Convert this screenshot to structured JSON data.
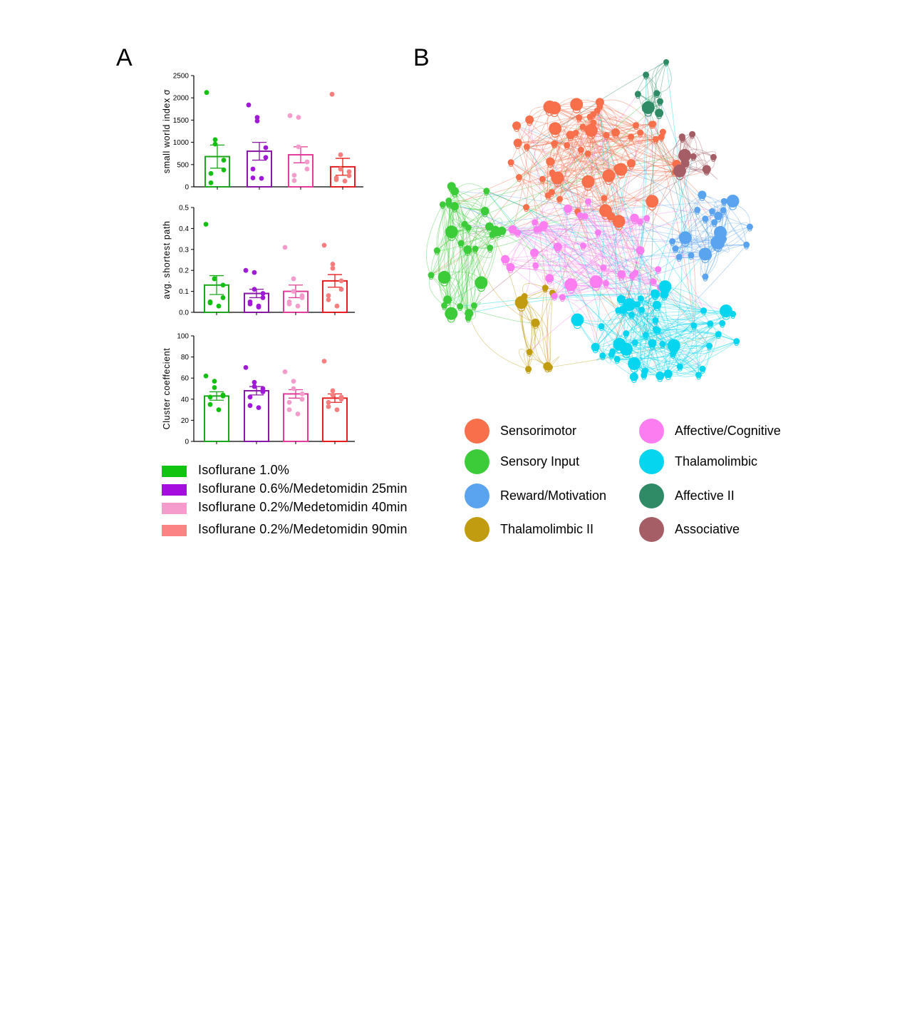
{
  "panels": {
    "a": "A",
    "b": "B"
  },
  "groups": [
    {
      "name": "Isoflurane  1.0%",
      "color": "#1aa71a",
      "dot": "#11c011",
      "swatch": "#12c412"
    },
    {
      "name": "Isoflurane  0.6%/Medetomidin  25min",
      "color": "#8a16a8",
      "dot": "#a019d6",
      "swatch": "#a60ee0"
    },
    {
      "name": "Isoflurane  0.2%/Medetomidin  40min",
      "color": "#e23b9a",
      "dot": "#f49ccc",
      "swatch": "#f59ccc"
    },
    {
      "name": "Isoflurane  0.2%/Medetomidin  90min",
      "color": "#e81e1e",
      "dot": "#f77e7e",
      "swatch": "#fb8383"
    }
  ],
  "chart_data": [
    {
      "type": "bar",
      "ylabel": "small world index σ",
      "ylim": [
        0,
        2500
      ],
      "yticks": [
        0,
        500,
        1000,
        1500,
        2000,
        2500
      ],
      "categories": [
        "Isoflurane  1.0%",
        "Isoflurane  0.6%/Medetomidin  25min",
        "Isoflurane  0.2%/Medetomidin  40min",
        "Isoflurane  0.2%/Medetomidin  90min"
      ],
      "values": [
        680,
        800,
        720,
        450
      ],
      "sem": [
        260,
        200,
        180,
        190
      ],
      "points": [
        [
          2120,
          1060,
          960,
          600,
          380,
          300,
          90
        ],
        [
          1840,
          1560,
          1480,
          880,
          660,
          400,
          200,
          190
        ],
        [
          1600,
          1560,
          900,
          560,
          400,
          260,
          140
        ],
        [
          2080,
          720,
          400,
          340,
          250,
          200,
          160,
          130
        ]
      ]
    },
    {
      "type": "bar",
      "ylabel": "avg. shortest path",
      "ylim": [
        0,
        0.5
      ],
      "yticks": [
        0.0,
        0.1,
        0.2,
        0.3,
        0.4,
        0.5
      ],
      "categories": [
        "Isoflurane  1.0%",
        "Isoflurane  0.6%/Medetomidin  25min",
        "Isoflurane  0.2%/Medetomidin  40min",
        "Isoflurane  0.2%/Medetomidin  90min"
      ],
      "values": [
        0.13,
        0.09,
        0.1,
        0.15
      ],
      "sem": [
        0.045,
        0.02,
        0.03,
        0.03
      ],
      "points": [
        [
          0.42,
          0.16,
          0.16,
          0.13,
          0.07,
          0.05,
          0.045,
          0.03
        ],
        [
          0.2,
          0.19,
          0.11,
          0.09,
          0.07,
          0.05,
          0.04,
          0.03,
          0.025
        ],
        [
          0.31,
          0.16,
          0.1,
          0.08,
          0.07,
          0.05,
          0.04,
          0.03
        ],
        [
          0.32,
          0.23,
          0.21,
          0.15,
          0.11,
          0.08,
          0.06,
          0.03
        ]
      ]
    },
    {
      "type": "bar",
      "ylabel": "Cluster coeffecient",
      "ylim": [
        0,
        100
      ],
      "yticks": [
        0,
        20,
        40,
        60,
        80,
        100
      ],
      "categories": [
        "Isoflurane  1.0%",
        "Isoflurane  0.6%/Medetomidin  25min",
        "Isoflurane  0.2%/Medetomidin  40min",
        "Isoflurane  0.2%/Medetomidin  90min"
      ],
      "values": [
        43,
        48,
        45,
        41
      ],
      "sem": [
        4,
        4,
        4,
        4
      ],
      "points": [
        [
          62,
          57,
          51,
          44,
          43,
          42,
          35,
          30
        ],
        [
          70,
          56,
          52,
          50,
          47,
          42,
          34,
          32
        ],
        [
          66,
          57,
          50,
          45,
          40,
          37,
          30,
          26
        ],
        [
          76,
          48,
          44,
          42,
          40,
          37,
          33,
          30
        ]
      ]
    },
    {
      "type": "network",
      "modules": [
        {
          "name": "Sensorimotor",
          "color": "#f86f4b"
        },
        {
          "name": "Sensory Input",
          "color": "#3ccc3a"
        },
        {
          "name": "Reward/Motivation",
          "color": "#5aa3ef"
        },
        {
          "name": "Thalamolimbic II",
          "color": "#c19c10"
        },
        {
          "name": "Affective/Cognitive",
          "color": "#fb7df0"
        },
        {
          "name": "Thalamolimbic",
          "color": "#06d5ef"
        },
        {
          "name": "Affective  II",
          "color": "#2e8b66"
        },
        {
          "name": "Associative",
          "color": "#a55e66"
        }
      ]
    }
  ]
}
